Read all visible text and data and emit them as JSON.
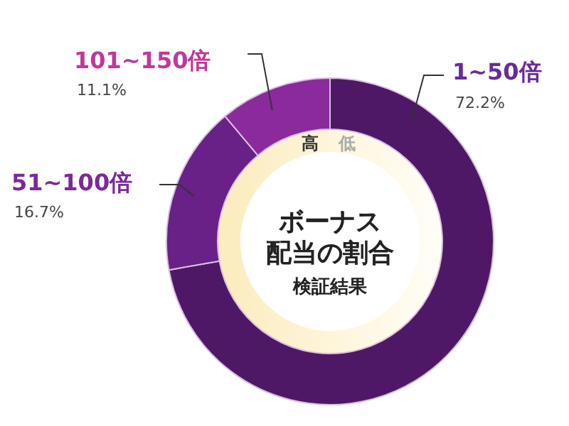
{
  "chart_data": {
    "type": "donut",
    "title": "ボーナス",
    "subtitle": "配当の割合",
    "categories": [
      "1~50倍",
      "51~100倍",
      "101~150倍"
    ],
    "values": [
      72.2,
      16.7,
      11.1
    ],
    "value_labels": [
      "72.2%",
      "16.7%",
      "11.1%"
    ],
    "colors": [
      "#4e1866",
      "#692087",
      "#8a2a9c"
    ],
    "annotations": [
      "検証結果",
      "高",
      "低"
    ]
  }
}
